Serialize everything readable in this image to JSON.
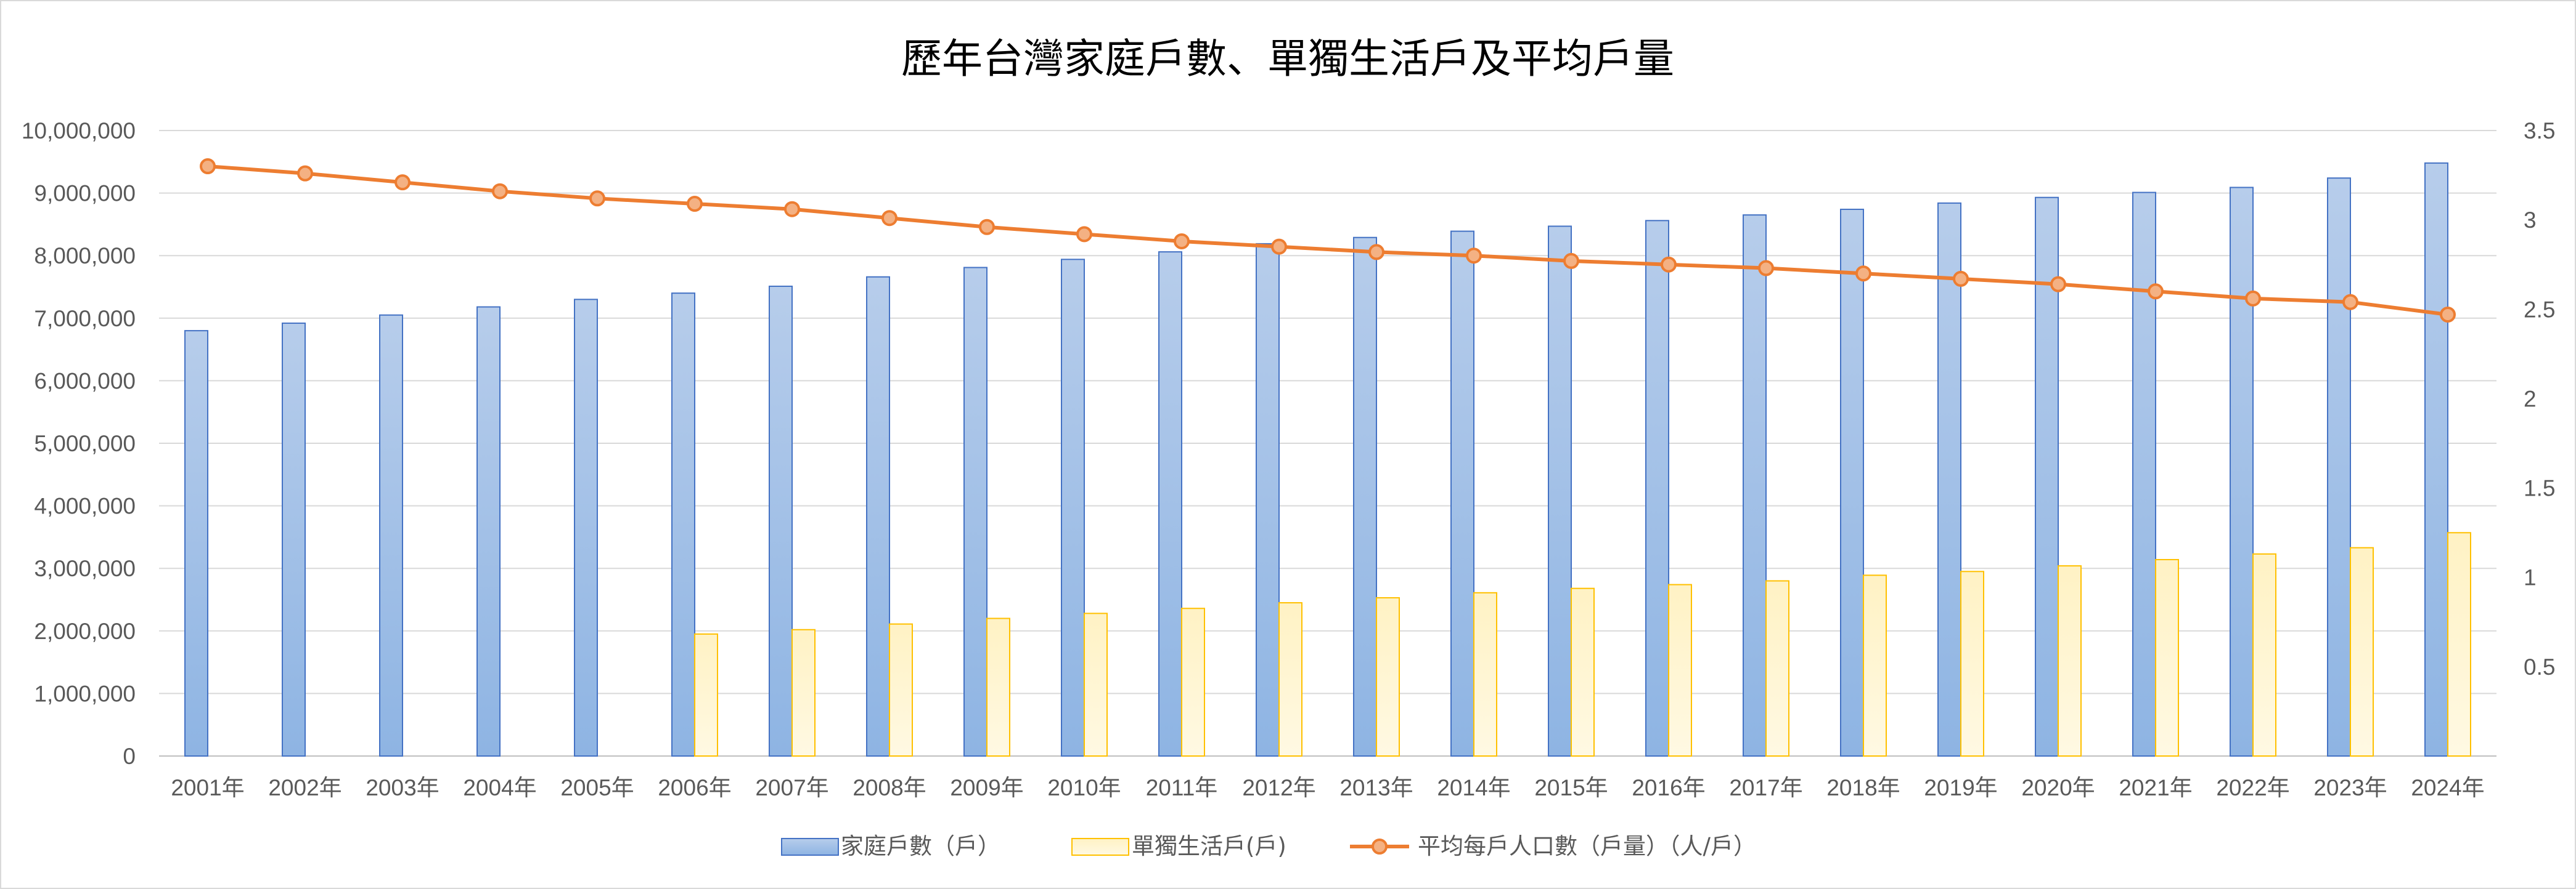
{
  "chart_data": {
    "type": "bar",
    "title": "歷年台灣家庭戶數、單獨生活戶及平均戶量",
    "categories": [
      "2001年",
      "2002年",
      "2003年",
      "2004年",
      "2005年",
      "2006年",
      "2007年",
      "2008年",
      "2009年",
      "2010年",
      "2011年",
      "2012年",
      "2013年",
      "2014年",
      "2015年",
      "2016年",
      "2017年",
      "2018年",
      "2019年",
      "2020年",
      "2021年",
      "2022年",
      "2023年",
      "2024年"
    ],
    "series": [
      {
        "name": "家庭戶數（戶）",
        "type": "bar",
        "axis": "left",
        "color": "#8eb4e3",
        "values": [
          6800000,
          6920000,
          7050000,
          7180000,
          7300000,
          7400000,
          7510000,
          7660000,
          7810000,
          7940000,
          8060000,
          8190000,
          8290000,
          8390000,
          8470000,
          8560000,
          8650000,
          8740000,
          8840000,
          8930000,
          9010000,
          9090000,
          9240000,
          9480000
        ]
      },
      {
        "name": "單獨生活戶(戶)",
        "type": "bar",
        "axis": "left",
        "color": "#ffd54f",
        "values": [
          null,
          null,
          null,
          null,
          null,
          1950000,
          2020000,
          2110000,
          2200000,
          2280000,
          2360000,
          2450000,
          2530000,
          2610000,
          2680000,
          2740000,
          2800000,
          2890000,
          2950000,
          3040000,
          3140000,
          3230000,
          3330000,
          3570000
        ]
      },
      {
        "name": "平均每戶人口數（戶量）（人/戶）",
        "type": "line",
        "axis": "right",
        "color": "#ed7d31",
        "values": [
          3.3,
          3.26,
          3.21,
          3.16,
          3.12,
          3.09,
          3.06,
          3.01,
          2.96,
          2.92,
          2.88,
          2.85,
          2.82,
          2.8,
          2.77,
          2.75,
          2.73,
          2.7,
          2.67,
          2.64,
          2.6,
          2.56,
          2.54,
          2.47
        ]
      }
    ],
    "y_left": {
      "min": 0,
      "max": 10000000,
      "ticks": [
        0,
        1000000,
        2000000,
        3000000,
        4000000,
        5000000,
        6000000,
        7000000,
        8000000,
        9000000,
        10000000
      ],
      "tick_labels": [
        "0",
        "1,000,000",
        "2,000,000",
        "3,000,000",
        "4,000,000",
        "5,000,000",
        "6,000,000",
        "7,000,000",
        "8,000,000",
        "9,000,000",
        "10,000,000"
      ]
    },
    "y_right": {
      "min": 0,
      "max": 3.5,
      "ticks": [
        0.5,
        1,
        1.5,
        2,
        2.5,
        3,
        3.5
      ],
      "tick_labels": [
        "0.5",
        "1",
        "1.5",
        "2",
        "2.5",
        "3",
        "3.5"
      ]
    },
    "grid": true,
    "legend_position": "bottom"
  }
}
